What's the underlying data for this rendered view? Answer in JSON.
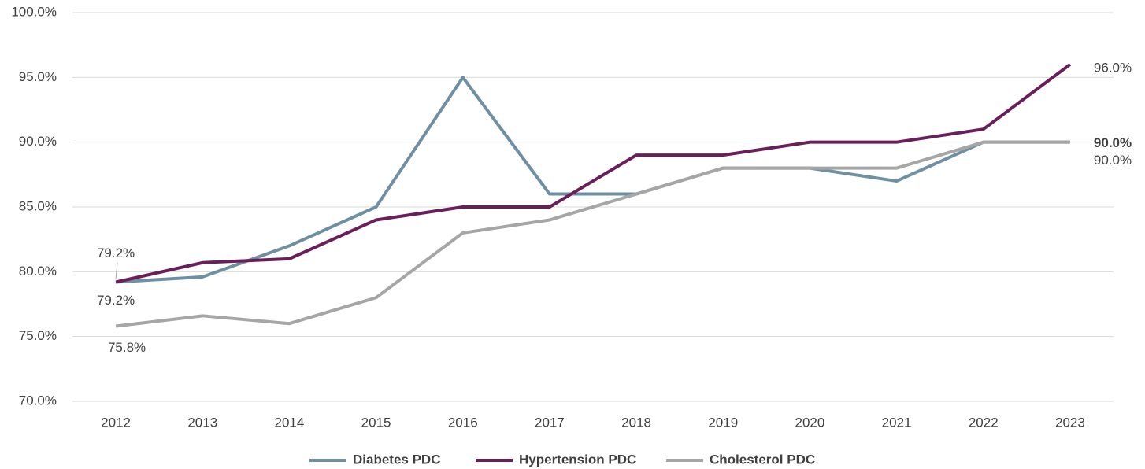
{
  "chart_data": {
    "type": "line",
    "categories": [
      "2012",
      "2013",
      "2014",
      "2015",
      "2016",
      "2017",
      "2018",
      "2019",
      "2020",
      "2021",
      "2022",
      "2023"
    ],
    "series": [
      {
        "name": "Diabetes PDC",
        "color": "#6f8fa3",
        "values": [
          79.2,
          79.6,
          82,
          85,
          95,
          86,
          86,
          88,
          88,
          87,
          90,
          90
        ],
        "value_labels": [
          "79.2%",
          null,
          null,
          null,
          null,
          null,
          null,
          null,
          null,
          null,
          null,
          "90.0%"
        ]
      },
      {
        "name": "Hypertension PDC",
        "color": "#6b1f5a",
        "values": [
          79.2,
          80.7,
          81,
          84,
          85,
          85,
          89,
          89,
          90,
          90,
          91,
          96
        ],
        "value_labels": [
          "79.2%",
          null,
          null,
          null,
          null,
          null,
          null,
          null,
          null,
          null,
          null,
          "96.0%"
        ]
      },
      {
        "name": "Cholesterol PDC",
        "color": "#a6a6a6",
        "values": [
          75.8,
          76.6,
          76,
          78,
          83,
          84,
          86,
          88,
          88,
          88,
          90,
          90
        ],
        "value_labels": [
          "75.8%",
          null,
          null,
          null,
          null,
          null,
          null,
          null,
          null,
          null,
          null,
          "90.0%"
        ]
      }
    ],
    "ylim": [
      70,
      100
    ],
    "yticks": [
      {
        "value": 70,
        "label": "70.0%"
      },
      {
        "value": 75,
        "label": "75.0%"
      },
      {
        "value": 80,
        "label": "80.0%"
      },
      {
        "value": 85,
        "label": "85.0%"
      },
      {
        "value": 90,
        "label": "90.0%"
      },
      {
        "value": 95,
        "label": "95.0%"
      },
      {
        "value": 100,
        "label": "100.0%"
      }
    ],
    "grid": true,
    "legend": "bottom"
  }
}
